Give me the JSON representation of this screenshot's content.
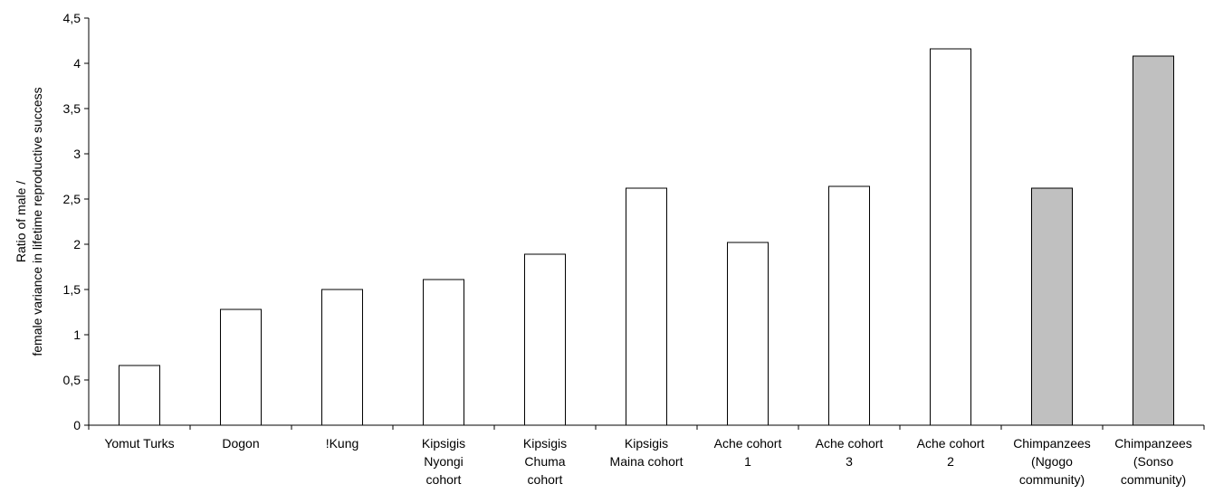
{
  "chart_data": {
    "type": "bar",
    "title": "",
    "xlabel": "",
    "ylabel_lines": [
      "Ratio of male /",
      "female variance in lifetime reproductive success"
    ],
    "ylim": [
      0,
      4.5
    ],
    "yticks": [
      {
        "value": 0,
        "label": "0"
      },
      {
        "value": 0.5,
        "label": "0,5"
      },
      {
        "value": 1,
        "label": "1"
      },
      {
        "value": 1.5,
        "label": "1,5"
      },
      {
        "value": 2,
        "label": "2"
      },
      {
        "value": 2.5,
        "label": "2,5"
      },
      {
        "value": 3,
        "label": "3"
      },
      {
        "value": 3.5,
        "label": "3,5"
      },
      {
        "value": 4,
        "label": "4"
      },
      {
        "value": 4.5,
        "label": "4,5"
      }
    ],
    "grid": false,
    "legend": "none",
    "categories": [
      {
        "lines": [
          "Yomut Turks"
        ],
        "value": 0.66,
        "group": "human"
      },
      {
        "lines": [
          "Dogon"
        ],
        "value": 1.28,
        "group": "human"
      },
      {
        "lines": [
          "!Kung"
        ],
        "value": 1.5,
        "group": "human"
      },
      {
        "lines": [
          "Kipsigis",
          "Nyongi",
          "cohort"
        ],
        "value": 1.61,
        "group": "human"
      },
      {
        "lines": [
          "Kipsigis",
          "Chuma",
          "cohort"
        ],
        "value": 1.89,
        "group": "human"
      },
      {
        "lines": [
          "Kipsigis",
          "Maina cohort"
        ],
        "value": 2.62,
        "group": "human"
      },
      {
        "lines": [
          "Ache cohort",
          "1"
        ],
        "value": 2.02,
        "group": "human"
      },
      {
        "lines": [
          "Ache cohort",
          "3"
        ],
        "value": 2.64,
        "group": "human"
      },
      {
        "lines": [
          "Ache cohort",
          "2"
        ],
        "value": 4.16,
        "group": "human"
      },
      {
        "lines": [
          "Chimpanzees",
          "(Ngogo",
          "community)"
        ],
        "value": 2.62,
        "group": "chimpanzee"
      },
      {
        "lines": [
          "Chimpanzees",
          "(Sonso",
          "community)"
        ],
        "value": 4.08,
        "group": "chimpanzee"
      }
    ],
    "colors": {
      "human": "#ffffff",
      "chimpanzee": "#c0c0c0",
      "stroke": "#000000"
    }
  }
}
